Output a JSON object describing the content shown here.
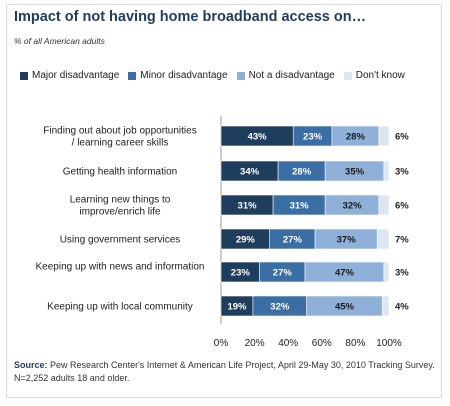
{
  "chart_data": {
    "type": "bar",
    "orientation": "horizontal",
    "stacked": true,
    "title": "Impact of not having home broadband access on…",
    "subtitle": "% of all American adults",
    "categories": [
      "Finding out about job opportunities / learning career skills",
      "Getting health information",
      "Learning new things to improve/enrich life",
      "Using government services",
      "Keeping up with news and information",
      "Keeping up with local community"
    ],
    "series": [
      {
        "name": "Major disadvantage",
        "color": "#1f3d5c",
        "values": [
          43,
          34,
          31,
          29,
          23,
          19
        ],
        "labels": [
          "43%",
          "34%",
          "31%",
          "29%",
          "23%",
          "19%"
        ]
      },
      {
        "name": "Minor disadvantage",
        "color": "#3a6ea5",
        "values": [
          23,
          28,
          31,
          27,
          27,
          32
        ],
        "labels": [
          "23%",
          "28%",
          "31%",
          "27%",
          "27%",
          "32%"
        ]
      },
      {
        "name": "Not a disadvantage",
        "color": "#8fb0d8",
        "values": [
          28,
          35,
          32,
          37,
          47,
          45
        ],
        "labels": [
          "28%",
          "35%",
          "32%",
          "37%",
          "47%",
          "45%"
        ]
      },
      {
        "name": "Don't know",
        "color": "#dde6f0",
        "values": [
          6,
          3,
          6,
          7,
          3,
          4
        ],
        "labels": [
          "6%",
          "3%",
          "6%",
          "7%",
          "3%",
          "4%"
        ]
      }
    ],
    "xlim": [
      0,
      100
    ],
    "x_ticks": [
      "0%",
      "20%",
      "40%",
      "60%",
      "80%",
      "100%"
    ],
    "legend_position": "top",
    "grid": false
  },
  "source": {
    "label": "Source:",
    "text": "Pew Research Center's Internet & American Life Project, April 29-May 30, 2010 Tracking Survey. N=2,252 adults 18 and older."
  }
}
